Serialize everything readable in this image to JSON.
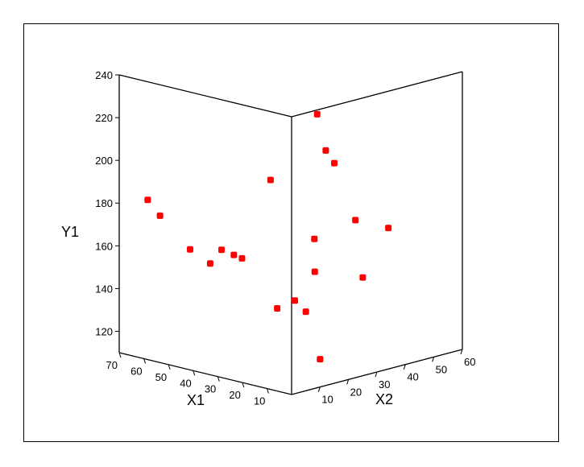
{
  "chart_data": {
    "type": "scatter3d",
    "title": "",
    "xlabel": "X1",
    "zlabel": "X2",
    "ylabel": "Y1",
    "x1_ticks": [
      "70",
      "60",
      "50",
      "40",
      "30",
      "20",
      "10"
    ],
    "x2_ticks": [
      "10",
      "20",
      "30",
      "40",
      "50",
      "60"
    ],
    "y_ticks": [
      "240",
      "220",
      "200",
      "180",
      "160",
      "140",
      "120"
    ],
    "x1_range": [
      0,
      70
    ],
    "x2_range": [
      0,
      60
    ],
    "y_range": [
      110,
      240
    ],
    "grid": false,
    "marker_color": "#ff0000",
    "points": [
      {
        "x1": 0,
        "x2": 9,
        "y": 238
      },
      {
        "x1": 0,
        "x2": 12,
        "y": 220
      },
      {
        "x1": 0,
        "x2": 15,
        "y": 213
      },
      {
        "x1": 12,
        "x2": 3,
        "y": 206
      },
      {
        "x1": 3,
        "x2": 25,
        "y": 182
      },
      {
        "x1": 0,
        "x2": 34,
        "y": 176
      },
      {
        "x1": 0,
        "x2": 8,
        "y": 180
      },
      {
        "x1": 1,
        "x2": 9,
        "y": 164
      },
      {
        "x1": 0,
        "x2": 25,
        "y": 156
      },
      {
        "x1": 0,
        "x2": 5,
        "y": 147
      },
      {
        "x1": 0,
        "x2": 10,
        "y": 123
      },
      {
        "x1": 70,
        "x2": 10,
        "y": 178
      },
      {
        "x1": 65,
        "x2": 10,
        "y": 172
      },
      {
        "x1": 47,
        "x2": 5,
        "y": 163
      },
      {
        "x1": 40,
        "x2": 10,
        "y": 163
      },
      {
        "x1": 35,
        "x2": 10,
        "y": 162
      },
      {
        "x1": 40,
        "x2": 6,
        "y": 158
      },
      {
        "x1": 34,
        "x2": 12,
        "y": 160
      },
      {
        "x1": 1,
        "x2": 2,
        "y": 153
      },
      {
        "x1": 7,
        "x2": 1,
        "y": 148
      }
    ]
  }
}
